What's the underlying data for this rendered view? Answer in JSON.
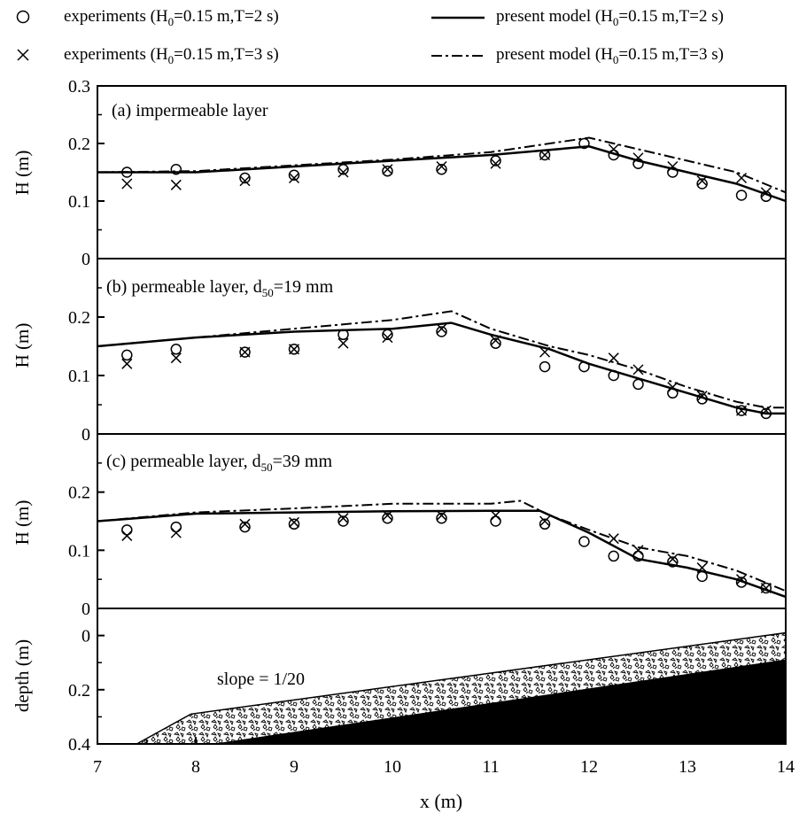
{
  "legend": {
    "items": [
      {
        "marker": "circle",
        "label": "experiments (H",
        "sub": "0",
        "label2": "=0.15 m,T=2 s)"
      },
      {
        "marker": "cross",
        "label": "experiments (H",
        "sub": "0",
        "label2": "=0.15 m,T=3 s)"
      },
      {
        "marker": "solid",
        "label": "present model (H",
        "sub": "0",
        "label2": "=0.15 m,T=2 s)"
      },
      {
        "marker": "dashdot",
        "label": "present model (H",
        "sub": "0",
        "label2": "=0.15 m,T=3 s)"
      }
    ]
  },
  "chart_data": [
    {
      "type": "line",
      "panel_label": "(a) impermeable layer",
      "ylabel": "H (m)",
      "ylim": [
        0,
        0.3
      ],
      "yticks": [
        "0",
        "0.1",
        "0.2",
        "0.3"
      ],
      "xlim": [
        7,
        14
      ],
      "series": [
        {
          "style": "circle",
          "x": [
            7.3,
            7.8,
            8.5,
            9.0,
            9.5,
            9.95,
            10.5,
            11.05,
            11.55,
            11.95,
            12.25,
            12.5,
            12.85,
            13.15,
            13.55,
            13.8
          ],
          "y": [
            0.15,
            0.155,
            0.14,
            0.145,
            0.155,
            0.152,
            0.155,
            0.17,
            0.18,
            0.2,
            0.18,
            0.165,
            0.15,
            0.13,
            0.11,
            0.108
          ]
        },
        {
          "style": "cross",
          "x": [
            7.3,
            7.8,
            8.5,
            9.0,
            9.5,
            9.95,
            10.5,
            11.05,
            11.55,
            12.25,
            12.5,
            12.85,
            13.15,
            13.55,
            13.8
          ],
          "y": [
            0.13,
            0.128,
            0.135,
            0.14,
            0.15,
            0.155,
            0.16,
            0.165,
            0.18,
            0.19,
            0.175,
            0.16,
            0.135,
            0.14,
            0.115
          ]
        },
        {
          "style": "solid",
          "x": [
            7.0,
            8.0,
            9.0,
            10.0,
            11.0,
            12.0,
            12.5,
            13.0,
            13.5,
            14.0
          ],
          "y": [
            0.15,
            0.15,
            0.16,
            0.17,
            0.18,
            0.195,
            0.17,
            0.15,
            0.13,
            0.1
          ]
        },
        {
          "style": "dashdot",
          "x": [
            7.0,
            8.0,
            9.0,
            10.0,
            11.0,
            12.0,
            12.5,
            13.0,
            13.5,
            14.0
          ],
          "y": [
            0.15,
            0.152,
            0.162,
            0.172,
            0.185,
            0.21,
            0.19,
            0.17,
            0.15,
            0.115
          ]
        }
      ]
    },
    {
      "type": "line",
      "panel_label": "(b) permeable layer, d",
      "panel_label_sub": "50",
      "panel_label_tail": "=19 mm",
      "ylabel": "H (m)",
      "ylim": [
        0,
        0.3
      ],
      "yticks": [
        "0",
        "0.1",
        "0.2"
      ],
      "xlim": [
        7,
        14
      ],
      "series": [
        {
          "style": "circle",
          "x": [
            7.3,
            7.8,
            8.5,
            9.0,
            9.5,
            9.95,
            10.5,
            11.05,
            11.55,
            11.95,
            12.25,
            12.5,
            12.85,
            13.15,
            13.55,
            13.8
          ],
          "y": [
            0.135,
            0.145,
            0.14,
            0.145,
            0.17,
            0.17,
            0.175,
            0.155,
            0.115,
            0.115,
            0.1,
            0.085,
            0.07,
            0.06,
            0.04,
            0.035
          ]
        },
        {
          "style": "cross",
          "x": [
            7.3,
            7.8,
            8.5,
            9.0,
            9.5,
            9.95,
            10.5,
            11.05,
            11.55,
            12.25,
            12.5,
            12.85,
            13.15,
            13.55,
            13.8
          ],
          "y": [
            0.12,
            0.13,
            0.14,
            0.145,
            0.155,
            0.165,
            0.18,
            0.16,
            0.14,
            0.13,
            0.11,
            0.08,
            0.065,
            0.04,
            0.04
          ]
        },
        {
          "style": "solid",
          "x": [
            7.0,
            8.0,
            9.0,
            10.0,
            10.6,
            11.0,
            11.6,
            12.0,
            12.5,
            13.0,
            13.5,
            13.8,
            14.0
          ],
          "y": [
            0.15,
            0.165,
            0.175,
            0.18,
            0.19,
            0.17,
            0.145,
            0.12,
            0.095,
            0.07,
            0.045,
            0.035,
            0.035
          ]
        },
        {
          "style": "dashdot",
          "x": [
            7.0,
            8.0,
            9.0,
            10.0,
            10.6,
            11.0,
            11.6,
            12.0,
            12.5,
            13.0,
            13.5,
            13.8,
            14.0
          ],
          "y": [
            0.15,
            0.165,
            0.18,
            0.195,
            0.21,
            0.18,
            0.15,
            0.135,
            0.11,
            0.08,
            0.055,
            0.045,
            0.045
          ]
        }
      ]
    },
    {
      "type": "line",
      "panel_label": "(c) permeable layer, d",
      "panel_label_sub": "50",
      "panel_label_tail": "=39 mm",
      "ylabel": "H (m)",
      "ylim": [
        0,
        0.3
      ],
      "yticks": [
        "0",
        "0.1",
        "0.2"
      ],
      "xlim": [
        7,
        14
      ],
      "series": [
        {
          "style": "circle",
          "x": [
            7.3,
            7.8,
            8.5,
            9.0,
            9.5,
            9.95,
            10.5,
            11.05,
            11.55,
            11.95,
            12.25,
            12.5,
            12.85,
            13.15,
            13.55,
            13.8
          ],
          "y": [
            0.135,
            0.14,
            0.14,
            0.145,
            0.15,
            0.155,
            0.155,
            0.15,
            0.145,
            0.115,
            0.09,
            0.09,
            0.08,
            0.055,
            0.045,
            0.035
          ]
        },
        {
          "style": "cross",
          "x": [
            7.3,
            7.8,
            8.5,
            9.0,
            9.5,
            9.95,
            10.5,
            11.05,
            11.55,
            12.25,
            12.5,
            12.85,
            13.15,
            13.55,
            13.8
          ],
          "y": [
            0.125,
            0.13,
            0.145,
            0.148,
            0.155,
            0.16,
            0.16,
            0.16,
            0.15,
            0.12,
            0.1,
            0.085,
            0.07,
            0.05,
            0.035
          ]
        },
        {
          "style": "solid",
          "x": [
            7.0,
            8.0,
            9.0,
            10.0,
            11.0,
            11.5,
            12.0,
            12.5,
            13.0,
            13.5,
            14.0
          ],
          "y": [
            0.15,
            0.163,
            0.165,
            0.167,
            0.168,
            0.168,
            0.13,
            0.085,
            0.07,
            0.05,
            0.02
          ]
        },
        {
          "style": "dashdot",
          "x": [
            7.0,
            8.0,
            9.0,
            10.0,
            11.0,
            11.3,
            11.6,
            12.0,
            12.5,
            13.0,
            13.5,
            14.0
          ],
          "y": [
            0.15,
            0.165,
            0.172,
            0.18,
            0.18,
            0.185,
            0.16,
            0.135,
            0.105,
            0.09,
            0.065,
            0.03
          ]
        }
      ]
    },
    {
      "type": "area",
      "annotation": "slope = 1/20",
      "ylabel": "depth (m)",
      "ylim": [
        0.4,
        -0.1
      ],
      "yticks": [
        "0.4",
        "0.2",
        "0"
      ],
      "xlim": [
        7,
        14
      ],
      "xticks": [
        "7",
        "8",
        "9",
        "10",
        "11",
        "12",
        "13",
        "14"
      ],
      "xlabel": "x (m)",
      "layer_top": {
        "x": [
          7.4,
          7.95,
          14.0
        ],
        "y": [
          0.4,
          0.29,
          -0.01
        ]
      },
      "impermeable_top": {
        "x": [
          8.2,
          14.0
        ],
        "y": [
          0.4,
          0.09
        ]
      }
    }
  ]
}
